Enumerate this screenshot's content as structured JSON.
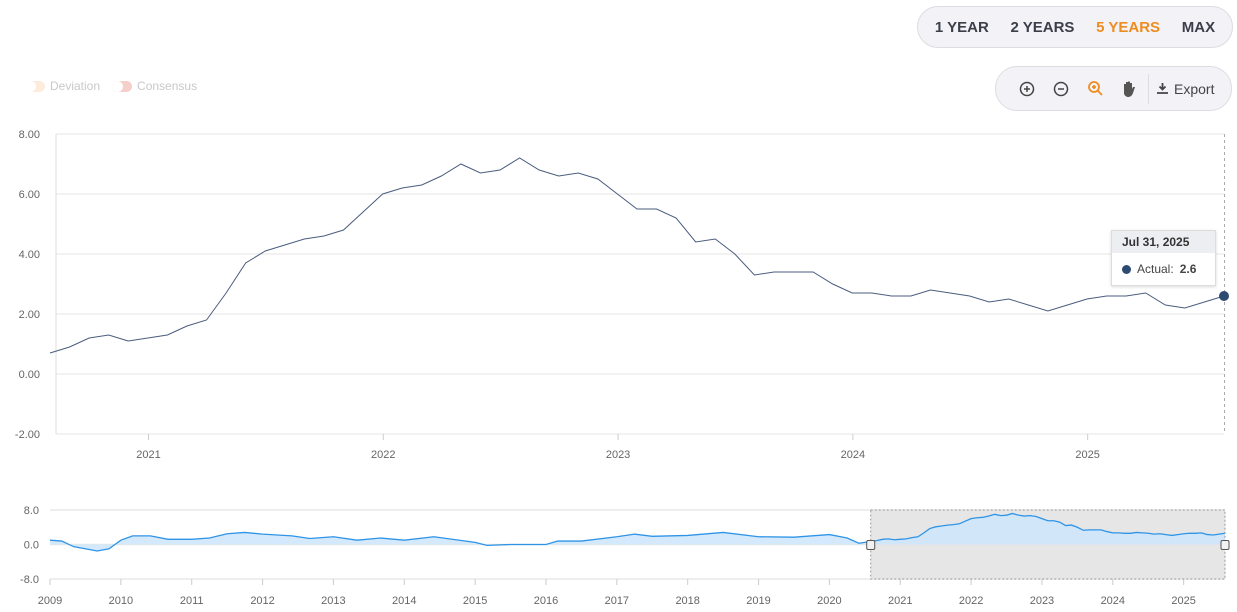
{
  "range_selector": {
    "buttons": [
      "1 YEAR",
      "2 YEARS",
      "5 YEARS",
      "MAX"
    ],
    "active": "5 YEARS"
  },
  "toolbar": {
    "export_label": "Export",
    "icons": [
      "zoom-in-icon",
      "zoom-out-icon",
      "magnify-icon",
      "pan-hand-icon",
      "download-icon"
    ]
  },
  "legend": [
    {
      "label": "Deviation",
      "color": "#fdebdc"
    },
    {
      "label": "Consensus",
      "color": "#f6cfcb"
    }
  ],
  "tooltip": {
    "date": "Jul 31, 2025",
    "series": "Actual:",
    "value": "2.6"
  },
  "colors": {
    "line": "#4a5d7e",
    "marker": "#2d4a72",
    "accent": "#ef8c1f",
    "navigator": "#2f94e6"
  },
  "chart_data": [
    {
      "type": "line",
      "series": [
        {
          "name": "Actual",
          "start": "2020-07",
          "frequency": "monthly",
          "values": [
            0.7,
            0.9,
            1.2,
            1.3,
            1.1,
            1.2,
            1.3,
            1.6,
            1.8,
            2.7,
            3.7,
            4.1,
            4.3,
            4.5,
            4.6,
            4.8,
            5.4,
            6.0,
            6.2,
            6.3,
            6.6,
            7.0,
            6.7,
            6.8,
            7.2,
            6.8,
            6.6,
            6.7,
            6.5,
            6.0,
            5.5,
            5.5,
            5.2,
            4.4,
            4.5,
            4.0,
            3.3,
            3.4,
            3.4,
            3.4,
            3.0,
            2.7,
            2.7,
            2.6,
            2.6,
            2.8,
            2.7,
            2.6,
            2.4,
            2.5,
            2.3,
            2.1,
            2.3,
            2.5,
            2.6,
            2.6,
            2.7,
            2.3,
            2.2,
            2.4,
            2.6
          ]
        }
      ],
      "x_range": [
        "2020-07-31",
        "2025-07-31"
      ],
      "xticks": [
        "2021",
        "2022",
        "2023",
        "2024",
        "2025"
      ],
      "ylim": [
        -2,
        8
      ],
      "yticks": [
        "-2.00",
        "0.00",
        "2.00",
        "4.00",
        "6.00",
        "8.00"
      ],
      "grid": true
    },
    {
      "type": "area",
      "role": "navigator",
      "points": [
        [
          "2009-01",
          1.0
        ],
        [
          "2009-03",
          0.8
        ],
        [
          "2009-05",
          -0.5
        ],
        [
          "2009-09",
          -1.5
        ],
        [
          "2009-11",
          -1.0
        ],
        [
          "2010-01",
          1.0
        ],
        [
          "2010-03",
          2.0
        ],
        [
          "2010-06",
          2.0
        ],
        [
          "2010-09",
          1.2
        ],
        [
          "2011-01",
          1.2
        ],
        [
          "2011-04",
          1.5
        ],
        [
          "2011-07",
          2.5
        ],
        [
          "2011-10",
          2.8
        ],
        [
          "2012-01",
          2.4
        ],
        [
          "2012-06",
          2.0
        ],
        [
          "2012-09",
          1.4
        ],
        [
          "2013-01",
          1.8
        ],
        [
          "2013-05",
          1.0
        ],
        [
          "2013-09",
          1.5
        ],
        [
          "2014-01",
          1.0
        ],
        [
          "2014-06",
          1.8
        ],
        [
          "2015-01",
          0.5
        ],
        [
          "2015-03",
          -0.2
        ],
        [
          "2015-07",
          0.0
        ],
        [
          "2016-01",
          0.0
        ],
        [
          "2016-03",
          0.8
        ],
        [
          "2016-07",
          0.8
        ],
        [
          "2017-01",
          1.8
        ],
        [
          "2017-04",
          2.4
        ],
        [
          "2017-07",
          1.9
        ],
        [
          "2018-01",
          2.1
        ],
        [
          "2018-07",
          2.8
        ],
        [
          "2019-01",
          1.8
        ],
        [
          "2019-07",
          1.7
        ],
        [
          "2020-01",
          2.3
        ],
        [
          "2020-04",
          1.5
        ],
        [
          "2020-06",
          0.3
        ]
      ],
      "xticks": [
        "2009",
        "2010",
        "2011",
        "2012",
        "2013",
        "2014",
        "2015",
        "2016",
        "2017",
        "2018",
        "2019",
        "2020",
        "2021",
        "2022",
        "2023",
        "2024",
        "2025"
      ],
      "yticks": [
        "-8.0",
        "0.0",
        "8.0"
      ],
      "ylim": [
        -8,
        8
      ],
      "selected_range": [
        "2020-07-31",
        "2025-07-31"
      ]
    }
  ]
}
